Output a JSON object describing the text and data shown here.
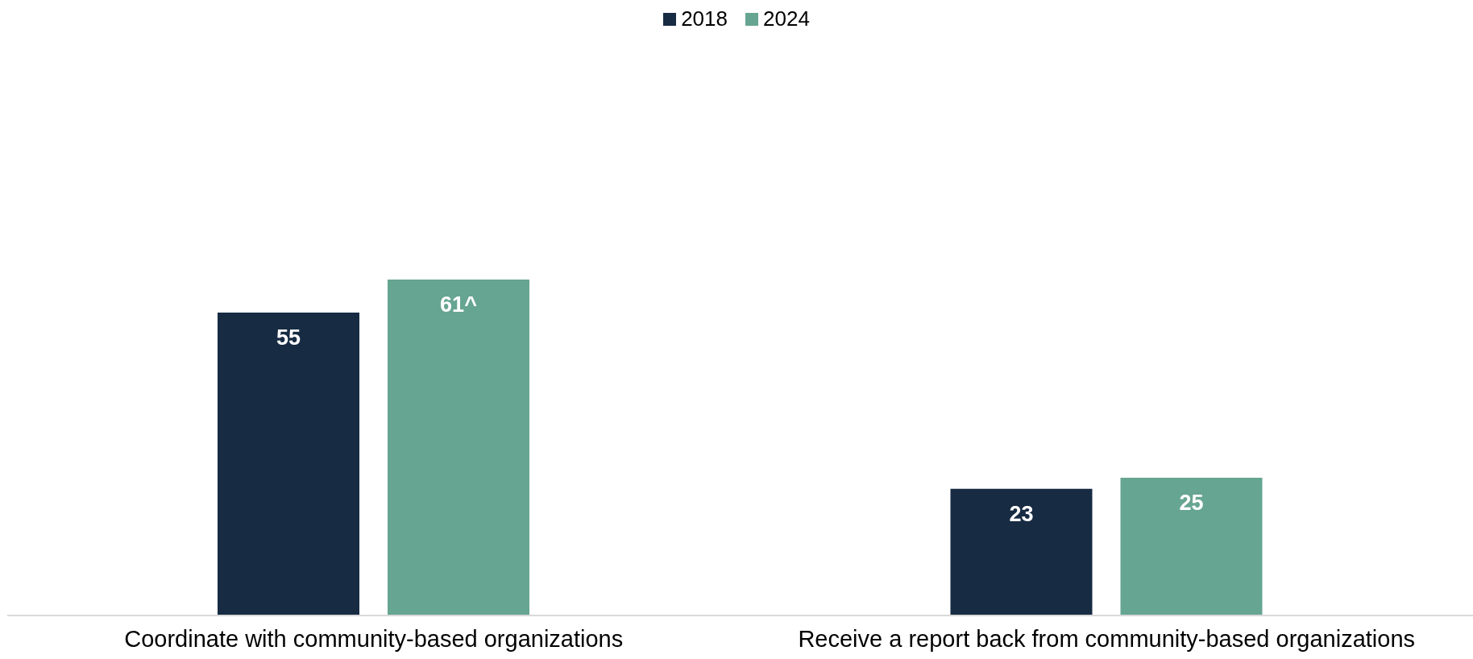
{
  "chart_data": {
    "type": "bar",
    "categories": [
      "Coordinate with community-based organizations",
      "Receive a report back from community-based organizations"
    ],
    "series": [
      {
        "name": "2018",
        "color": "#172b43",
        "values": [
          55,
          23
        ],
        "value_labels": [
          "55",
          "23"
        ]
      },
      {
        "name": "2024",
        "color": "#66a591",
        "values": [
          61,
          25
        ],
        "value_labels": [
          "61^",
          "25"
        ]
      }
    ],
    "tick_labels": "x",
    "legend": "top",
    "grid": false
  }
}
